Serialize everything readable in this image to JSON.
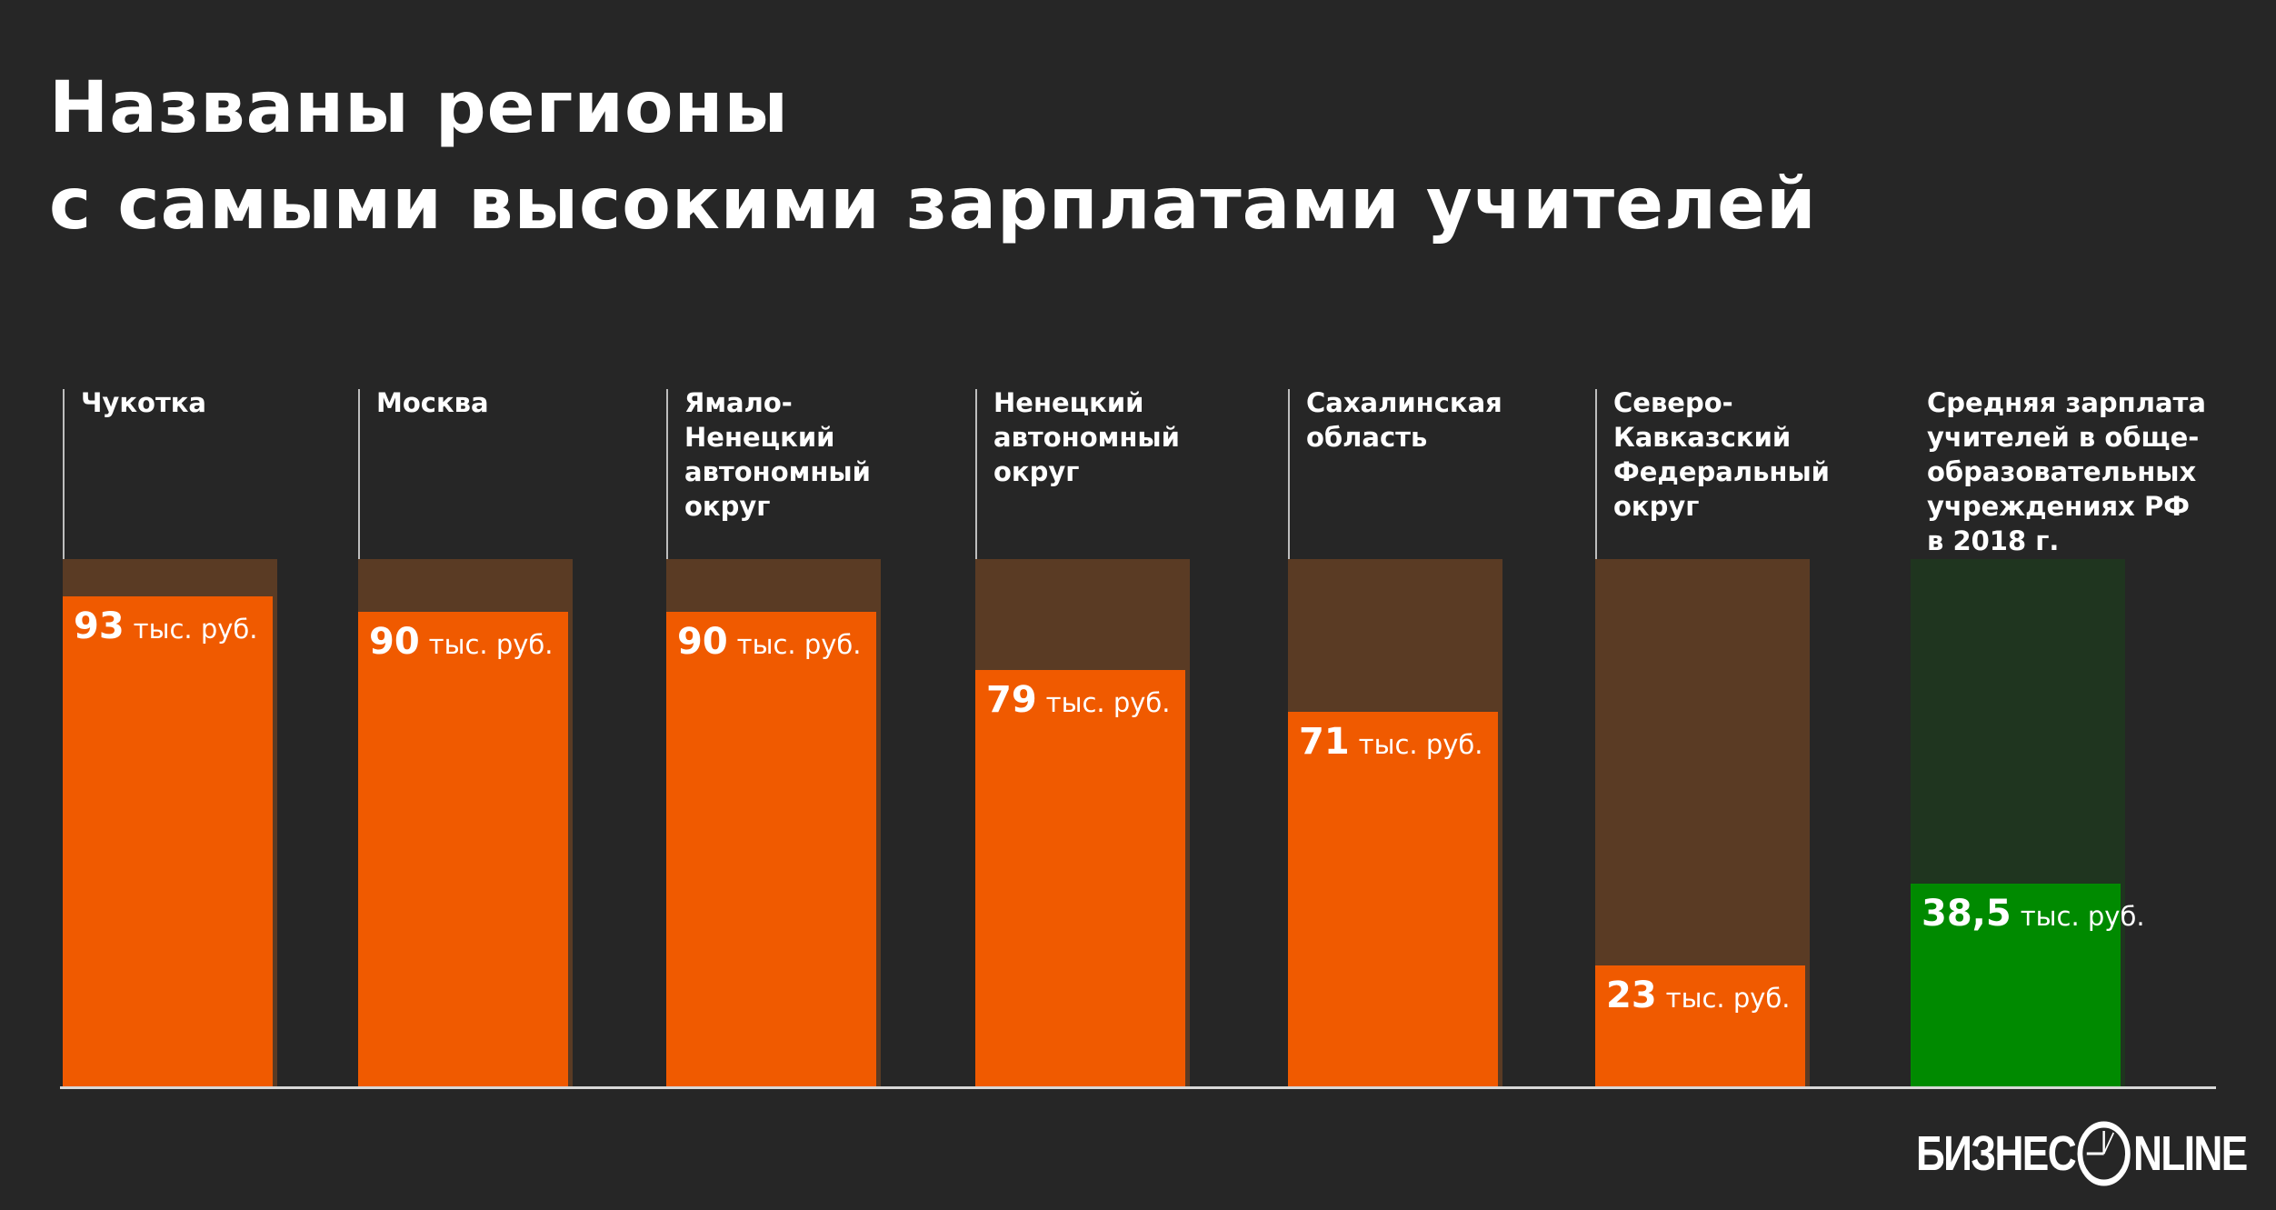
{
  "chart_data": {
    "type": "bar",
    "title": "Названы регионы\nс самыми высокими зарплатами учителей",
    "title_lines": [
      "Названы регионы",
      "с самыми высокими зарплатами учителей"
    ],
    "unit": "тыс. руб.",
    "categories": [
      "Чукотка",
      "Москва",
      "Ямало-Ненецкий автономный округ",
      "Ненецкий автономный округ",
      "Сахалинская область",
      "Северо-Кавказский Федеральный округ",
      "Средняя зарплата учителей в обще-образовательных учреждениях РФ в 2018 г."
    ],
    "label_lines": [
      [
        "Чукотка"
      ],
      [
        "Москва"
      ],
      [
        "Ямало-",
        "Ненецкий",
        "автономный",
        "округ"
      ],
      [
        "Ненецкий",
        "автономный",
        "округ"
      ],
      [
        "Сахалинская",
        "область"
      ],
      [
        "Северо-",
        "Кавказский",
        "Федеральный",
        "округ"
      ],
      [
        "Средняя зарплата",
        "учителей в обще-",
        "образовательных",
        "учреждениях РФ",
        "в 2018 г."
      ]
    ],
    "values": [
      93,
      90,
      90,
      79,
      71,
      23,
      38.5
    ],
    "value_labels": [
      "93",
      "90",
      "90",
      "79",
      "71",
      "23",
      "38,5"
    ],
    "ylim": [
      0,
      100
    ],
    "grid": false,
    "colors": {
      "background": "#262626",
      "bar": "#f05a00",
      "bar_track": "#5a3b24",
      "average_bar": "#008a00",
      "average_track": "#1f351f"
    }
  },
  "logo": {
    "text_left": "БИЗНЕС",
    "text_right": "NLINE",
    "icon": "clock-icon"
  }
}
